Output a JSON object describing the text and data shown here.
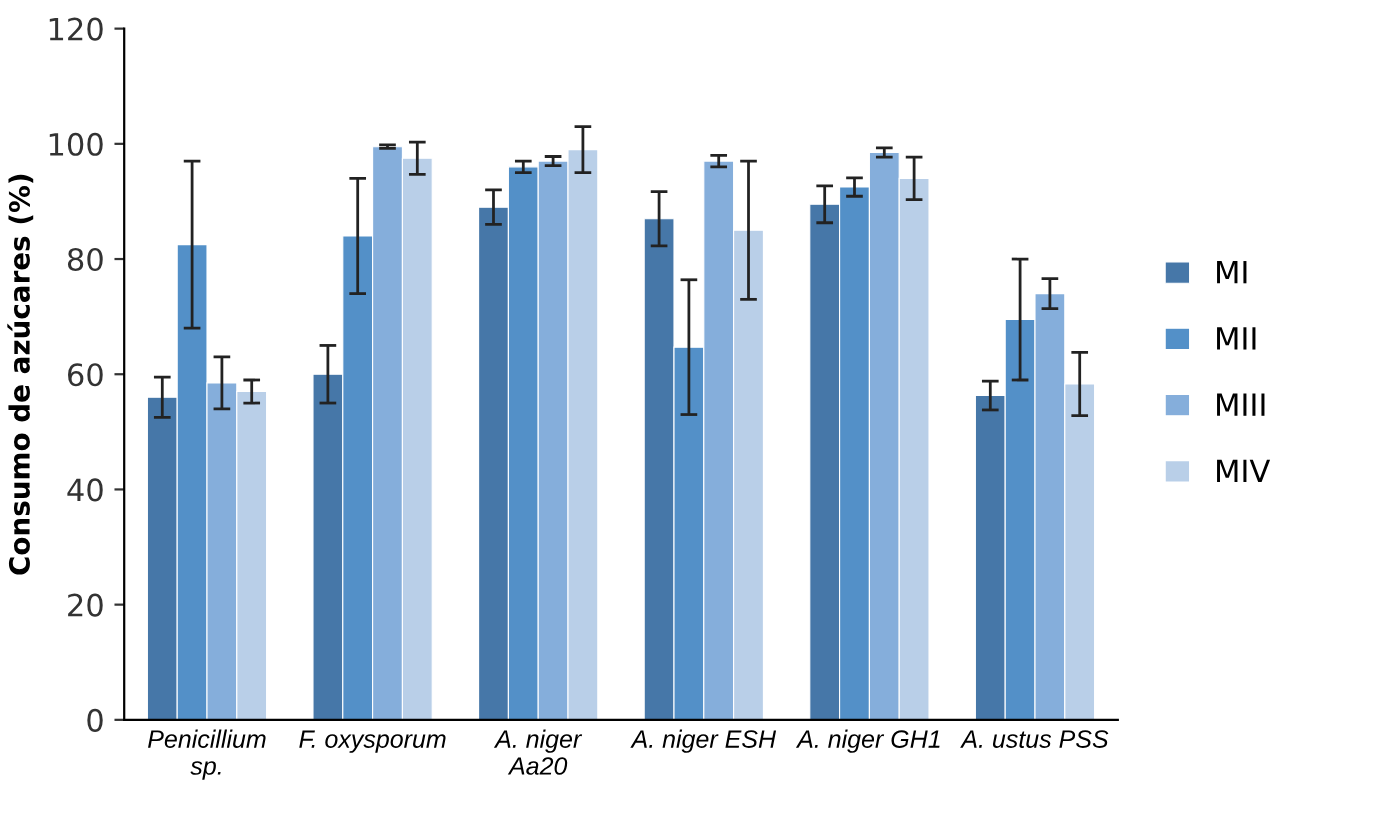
{
  "chart_data": {
    "type": "bar",
    "ylabel": "Consumo de azúcares (%)",
    "categories": [
      "Penicillium sp.",
      "F. oxysporum",
      "A. niger Aa20",
      "A. niger ESH",
      "A. niger GH1",
      "A. ustus PSS"
    ],
    "series": [
      {
        "name": "MI",
        "color": "#4677a8",
        "values": [
          56,
          60,
          89,
          87,
          89.5,
          56.3
        ],
        "errors": [
          3.5,
          5,
          3,
          4.7,
          3.2,
          2.5
        ]
      },
      {
        "name": "MII",
        "color": "#5390c8",
        "values": [
          82.5,
          84,
          96,
          64.7,
          92.5,
          69.5
        ],
        "errors": [
          14.5,
          10,
          1,
          11.7,
          1.6,
          10.5
        ]
      },
      {
        "name": "MIII",
        "color": "#85aedb",
        "values": [
          58.5,
          99.5,
          97,
          97,
          98.5,
          74
        ],
        "errors": [
          4.5,
          0.3,
          0.8,
          1,
          0.8,
          2.6
        ]
      },
      {
        "name": "MIV",
        "color": "#b9cfe8",
        "values": [
          57,
          97.5,
          99,
          85,
          94,
          58.3
        ],
        "errors": [
          2,
          2.8,
          4,
          12,
          3.7,
          5.5
        ]
      }
    ],
    "ylim": [
      0,
      120
    ],
    "yticks": [
      0,
      20,
      40,
      60,
      80,
      100,
      120
    ],
    "grid": false,
    "legend": "right"
  }
}
